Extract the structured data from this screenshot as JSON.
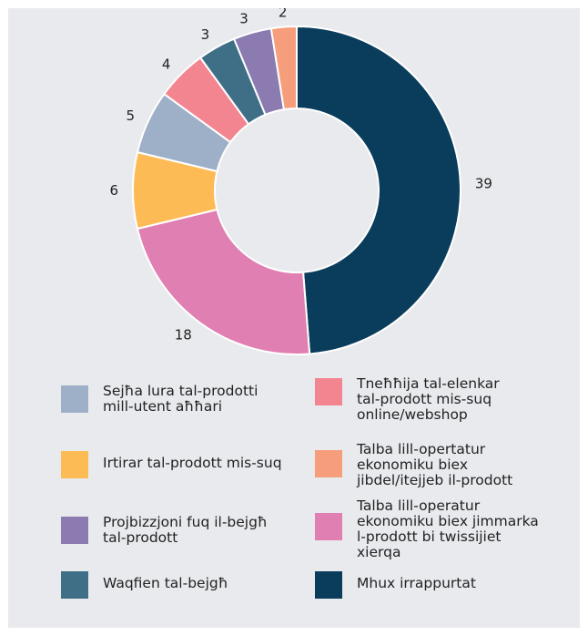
{
  "chart_data": {
    "type": "pie",
    "title": "",
    "donut": true,
    "slices": [
      {
        "label": "Mhux irrappurtat",
        "value": 39,
        "color": "#0a3d5c"
      },
      {
        "label": "Talba lill-operatur ekonomiku biex jimmarka l-prodott bi twissijiet xierqa",
        "value": 18,
        "color": "#e07fb1"
      },
      {
        "label": "Irtirar tal-prodott mis-suq",
        "value": 6,
        "color": "#fdbb55"
      },
      {
        "label": "Sejħa lura tal-prodotti mill-utent aħħari",
        "value": 5,
        "color": "#9eafc8"
      },
      {
        "label": "Tneħħija tal-elenkar tal-prodott mis-suq online/webshop",
        "value": 4,
        "color": "#f38590"
      },
      {
        "label": "Waqfien tal-bejgħ",
        "value": 3,
        "color": "#3f6f87"
      },
      {
        "label": "Projbizzjoni fuq il-bejgħ tal-prodott",
        "value": 3,
        "color": "#8b7bb0"
      },
      {
        "label": "Talba lill-opertatur ekonomiku biex jibdel/itejjeb il-prodott",
        "value": 2,
        "color": "#f69e7b"
      }
    ],
    "data_labels": [
      "39",
      "18",
      "6",
      "5",
      "4",
      "3",
      "3",
      "2"
    ]
  },
  "legend": [
    {
      "label": "Sejħa lura tal-prodotti\nmill-utent aħħari",
      "color": "#9eafc8"
    },
    {
      "label": "Tneħħija tal-elenkar\ntal-prodott mis-suq\nonline/webshop",
      "color": "#f38590"
    },
    {
      "label": "Irtirar tal-prodott mis-suq",
      "color": "#fdbb55"
    },
    {
      "label": "Talba lill-opertatur\nekonomiku biex\njibdel/itejjeb il-prodott",
      "color": "#f69e7b"
    },
    {
      "label": "Projbizzjoni fuq il-bejgħ\ntal-prodott",
      "color": "#8b7bb0"
    },
    {
      "label": "Talba lill-operatur\nekonomiku biex jimmarka\nl-prodott bi twissijiet\nxierqa",
      "color": "#e07fb1"
    },
    {
      "label": "Waqfien tal-bejgħ",
      "color": "#3f6f87"
    },
    {
      "label": "Mhux irrappurtat",
      "color": "#0a3d5c"
    }
  ]
}
